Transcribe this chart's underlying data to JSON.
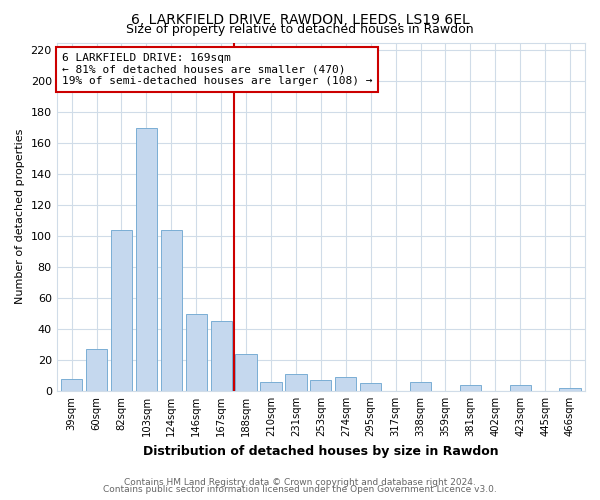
{
  "title": "6, LARKFIELD DRIVE, RAWDON, LEEDS, LS19 6EL",
  "subtitle": "Size of property relative to detached houses in Rawdon",
  "xlabel": "Distribution of detached houses by size in Rawdon",
  "ylabel": "Number of detached properties",
  "bar_labels": [
    "39sqm",
    "60sqm",
    "82sqm",
    "103sqm",
    "124sqm",
    "146sqm",
    "167sqm",
    "188sqm",
    "210sqm",
    "231sqm",
    "253sqm",
    "274sqm",
    "295sqm",
    "317sqm",
    "338sqm",
    "359sqm",
    "381sqm",
    "402sqm",
    "423sqm",
    "445sqm",
    "466sqm"
  ],
  "bar_values": [
    8,
    27,
    104,
    170,
    104,
    50,
    45,
    24,
    6,
    11,
    7,
    9,
    5,
    0,
    6,
    0,
    4,
    0,
    4,
    0,
    2
  ],
  "bar_color": "#c5d8ee",
  "bar_edge_color": "#7aaed4",
  "vline_x_idx": 6,
  "vline_color": "#cc0000",
  "annotation_text": "6 LARKFIELD DRIVE: 169sqm\n← 81% of detached houses are smaller (470)\n19% of semi-detached houses are larger (108) →",
  "annotation_box_color": "#ffffff",
  "annotation_box_edge": "#cc0000",
  "ylim": [
    0,
    225
  ],
  "yticks": [
    0,
    20,
    40,
    60,
    80,
    100,
    120,
    140,
    160,
    180,
    200,
    220
  ],
  "footer1": "Contains HM Land Registry data © Crown copyright and database right 2024.",
  "footer2": "Contains public sector information licensed under the Open Government Licence v3.0.",
  "bg_color": "#ffffff",
  "plot_bg_color": "#ffffff",
  "grid_color": "#d0dce8"
}
